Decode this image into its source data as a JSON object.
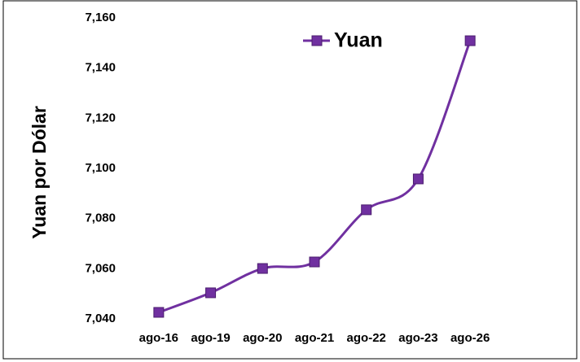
{
  "chart_data": {
    "type": "line",
    "y_label": "Yuan por Dólar",
    "categories": [
      "ago-16",
      "ago-19",
      "ago-20",
      "ago-21",
      "ago-22",
      "ago-23",
      "ago-26"
    ],
    "series": [
      {
        "name": "Yuan",
        "color": "#7030a0",
        "values": [
          7.0426,
          7.0504,
          7.0601,
          7.0627,
          7.0835,
          7.0958,
          7.1509
        ]
      }
    ],
    "ylim": [
      7.04,
      7.16
    ],
    "yticks": [
      {
        "value": 7.04,
        "label": "7,040"
      },
      {
        "value": 7.06,
        "label": "7,060"
      },
      {
        "value": 7.08,
        "label": "7,080"
      },
      {
        "value": 7.1,
        "label": "7,100"
      },
      {
        "value": 7.12,
        "label": "7,120"
      },
      {
        "value": 7.14,
        "label": "7,140"
      },
      {
        "value": 7.16,
        "label": "7,160"
      }
    ],
    "smooth": true,
    "legend": "top"
  }
}
